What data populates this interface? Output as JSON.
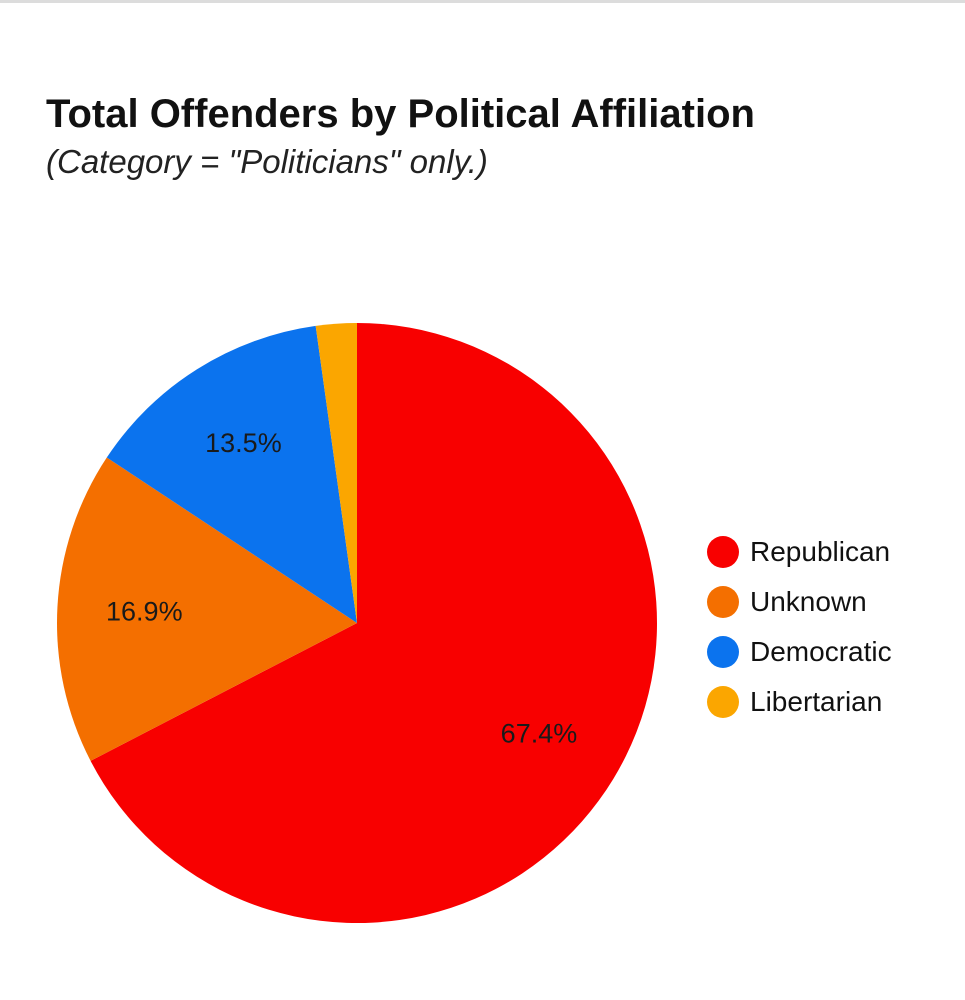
{
  "chart_data": {
    "type": "pie",
    "title": "Total Offenders by Political Affiliation",
    "subtitle": "(Category = \"Politicians\" only.)",
    "categories": [
      "Republican",
      "Unknown",
      "Democratic",
      "Libertarian"
    ],
    "values": [
      67.4,
      16.9,
      13.5,
      2.2
    ],
    "data_labels": [
      "67.4%",
      "16.9%",
      "13.5%",
      ""
    ],
    "colors": [
      "#f80000",
      "#f46f00",
      "#0b73ee",
      "#fba600"
    ],
    "legend_position": "right"
  }
}
